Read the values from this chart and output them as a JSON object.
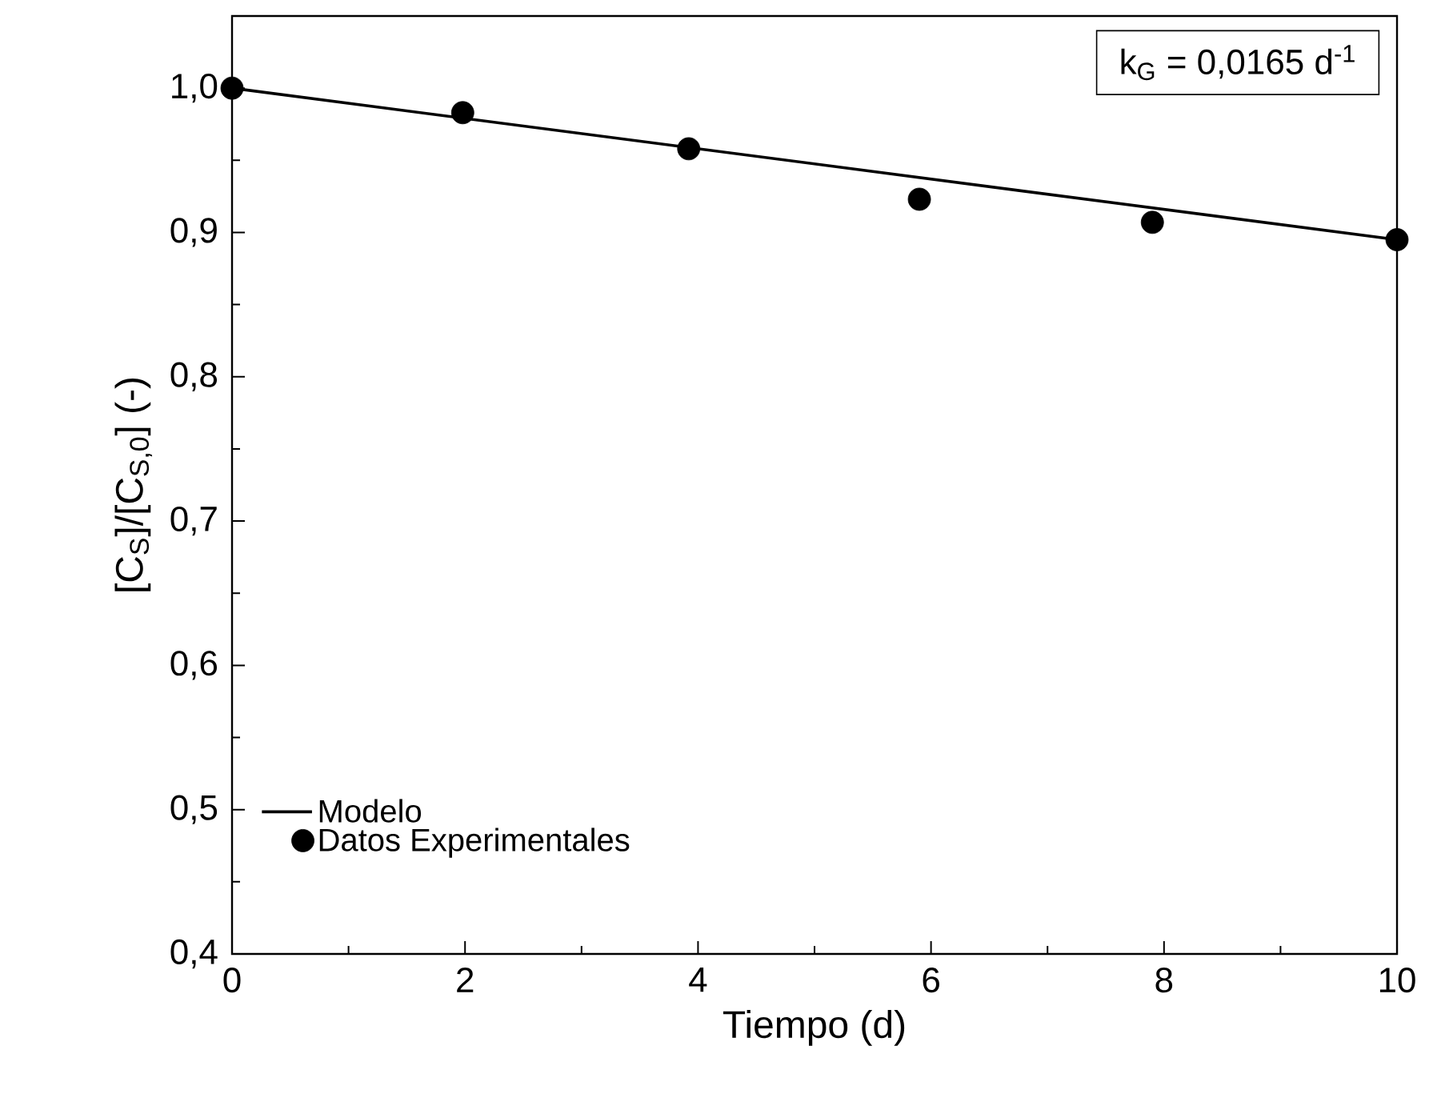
{
  "chart_data": {
    "type": "line",
    "xlabel": "Tiempo (d)",
    "ylabel": "[C$_{S}$]/[C$_{S,0}$]  (-)",
    "annotations": [
      "k$_{G}$ = 0,0165 d$^{-1}$"
    ],
    "xlim": [
      0,
      10
    ],
    "ylim": [
      0.4,
      1.05
    ],
    "xticks": [
      0,
      2,
      4,
      6,
      8,
      10
    ],
    "yticks": [
      {
        "value": 0.4,
        "label": "0,4"
      },
      {
        "value": 0.5,
        "label": "0,5"
      },
      {
        "value": 0.6,
        "label": "0,6"
      },
      {
        "value": 0.7,
        "label": "0,7"
      },
      {
        "value": 0.8,
        "label": "0,8"
      },
      {
        "value": 0.9,
        "label": "0,9"
      },
      {
        "value": 1.0,
        "label": "1,0"
      }
    ],
    "legend": "bottom left",
    "grid": false,
    "marker": "circle",
    "series": [
      {
        "name": "Modelo",
        "color": "#000000",
        "marker": "none",
        "line_style": "solid",
        "x": [
          0,
          10
        ],
        "values": [
          1.0,
          0.895
        ]
      },
      {
        "name": "Datos Experimentales",
        "type": "scatter",
        "color": "#000000",
        "x": [
          0,
          1.98,
          3.92,
          5.9,
          7.9,
          10
        ],
        "values": [
          1.0,
          0.983,
          0.958,
          0.923,
          0.907,
          0.895
        ]
      }
    ]
  }
}
